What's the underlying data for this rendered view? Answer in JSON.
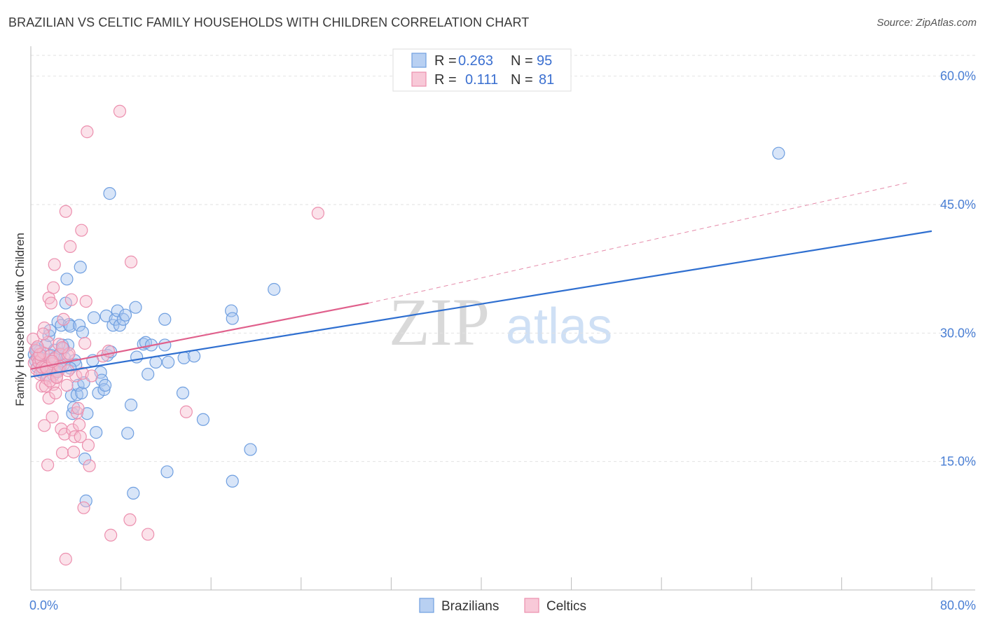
{
  "chart_data": {
    "type": "scatter",
    "title": "BRAZILIAN VS CELTIC FAMILY HOUSEHOLDS WITH CHILDREN CORRELATION CHART",
    "source": "Source: ZipAtlas.com",
    "xlabel": "",
    "ylabel": "Family Households with Children",
    "xlim": [
      0,
      80
    ],
    "ylim": [
      0,
      63
    ],
    "x_tick_labels": [
      {
        "value": 0,
        "label": "0.0%"
      },
      {
        "value": 80,
        "label": "80.0%"
      }
    ],
    "y_tick_labels": [
      {
        "value": 15,
        "label": "15.0%"
      },
      {
        "value": 30,
        "label": "30.0%"
      },
      {
        "value": 45,
        "label": "45.0%"
      },
      {
        "value": 60,
        "label": "60.0%"
      }
    ],
    "watermark": {
      "zip": "ZIP",
      "atlas": "atlas"
    },
    "legend": {
      "r_label": "R =",
      "n_label": "N =",
      "entries": [
        {
          "r": "0.263",
          "n": "95"
        },
        {
          "r": "0.111",
          "n": "81"
        }
      ]
    },
    "series": [
      {
        "name": "Brazilians",
        "color": "#6f9fe0",
        "fill": "#a9c6ef",
        "trend": {
          "x0": 0,
          "y0": 24.9,
          "x1": 80,
          "y1": 41.9,
          "style": "solid",
          "color": "#2f6fd0"
        },
        "points": [
          [
            0.3,
            27.5
          ],
          [
            0.4,
            26.8
          ],
          [
            0.5,
            28.2
          ],
          [
            0.6,
            26.0
          ],
          [
            0.7,
            27.3
          ],
          [
            0.8,
            27.9
          ],
          [
            0.9,
            26.6
          ],
          [
            1.0,
            25.4
          ],
          [
            1.1,
            27.0
          ],
          [
            1.2,
            26.3
          ],
          [
            1.3,
            28.6
          ],
          [
            1.4,
            26.9
          ],
          [
            1.5,
            25.0
          ],
          [
            1.6,
            29.7
          ],
          [
            1.7,
            30.3
          ],
          [
            1.8,
            27.4
          ],
          [
            1.9,
            26.5
          ],
          [
            2.0,
            25.1
          ],
          [
            2.1,
            28.0
          ],
          [
            2.2,
            27.2
          ],
          [
            2.3,
            26.0
          ],
          [
            2.4,
            31.3
          ],
          [
            2.5,
            25.7
          ],
          [
            2.6,
            27.6
          ],
          [
            2.7,
            30.9
          ],
          [
            2.8,
            28.6
          ],
          [
            2.9,
            26.3
          ],
          [
            3.0,
            27.1
          ],
          [
            3.1,
            33.5
          ],
          [
            3.2,
            36.3
          ],
          [
            3.3,
            28.6
          ],
          [
            3.4,
            31.0
          ],
          [
            3.5,
            30.8
          ],
          [
            3.6,
            22.7
          ],
          [
            3.7,
            20.6
          ],
          [
            3.8,
            21.3
          ],
          [
            3.9,
            26.8
          ],
          [
            4.0,
            26.3
          ],
          [
            4.1,
            22.8
          ],
          [
            4.2,
            23.9
          ],
          [
            4.3,
            30.9
          ],
          [
            4.4,
            37.7
          ],
          [
            4.5,
            23.0
          ],
          [
            4.6,
            30.1
          ],
          [
            4.7,
            24.2
          ],
          [
            4.8,
            15.3
          ],
          [
            4.9,
            10.4
          ],
          [
            5.0,
            20.6
          ],
          [
            5.5,
            26.8
          ],
          [
            5.6,
            31.8
          ],
          [
            5.8,
            18.4
          ],
          [
            6.0,
            23.0
          ],
          [
            6.2,
            25.4
          ],
          [
            6.3,
            24.5
          ],
          [
            6.5,
            23.4
          ],
          [
            6.6,
            23.9
          ],
          [
            6.7,
            32.0
          ],
          [
            6.8,
            27.4
          ],
          [
            7.0,
            46.3
          ],
          [
            7.1,
            27.8
          ],
          [
            7.3,
            30.9
          ],
          [
            7.5,
            31.6
          ],
          [
            7.7,
            32.6
          ],
          [
            7.9,
            30.9
          ],
          [
            8.2,
            31.6
          ],
          [
            8.4,
            32.1
          ],
          [
            8.6,
            18.3
          ],
          [
            8.9,
            21.6
          ],
          [
            9.1,
            11.3
          ],
          [
            9.3,
            33.0
          ],
          [
            9.4,
            27.2
          ],
          [
            10.0,
            28.7
          ],
          [
            10.2,
            28.9
          ],
          [
            10.4,
            25.2
          ],
          [
            10.7,
            28.6
          ],
          [
            11.1,
            26.6
          ],
          [
            11.9,
            31.6
          ],
          [
            11.9,
            28.6
          ],
          [
            12.1,
            13.8
          ],
          [
            12.2,
            26.6
          ],
          [
            13.5,
            23.0
          ],
          [
            13.6,
            27.1
          ],
          [
            14.5,
            27.3
          ],
          [
            15.3,
            19.9
          ],
          [
            17.8,
            32.6
          ],
          [
            17.9,
            12.7
          ],
          [
            17.9,
            31.7
          ],
          [
            19.5,
            16.4
          ],
          [
            21.6,
            35.1
          ],
          [
            66.4,
            51.0
          ],
          [
            1.2,
            26.1
          ],
          [
            0.5,
            27.9
          ],
          [
            2.2,
            25.5
          ],
          [
            3.5,
            25.9
          ],
          [
            2.9,
            28.2
          ]
        ]
      },
      {
        "name": "Celtics",
        "color": "#ec8fae",
        "fill": "#f6bfd1",
        "trend": {
          "x0": 0,
          "y0": 25.8,
          "x1": 30,
          "y1": 33.5,
          "dash_to_x": 78,
          "dash_to_y": 47.6,
          "style": "solid",
          "color": "#e0608c"
        },
        "points": [
          [
            0.2,
            29.3
          ],
          [
            0.3,
            26.5
          ],
          [
            0.4,
            28.0
          ],
          [
            0.5,
            25.8
          ],
          [
            0.6,
            27.1
          ],
          [
            0.7,
            26.6
          ],
          [
            0.8,
            25.2
          ],
          [
            0.9,
            26.9
          ],
          [
            1.0,
            23.8
          ],
          [
            1.1,
            27.7
          ],
          [
            1.2,
            30.6
          ],
          [
            1.3,
            26.1
          ],
          [
            1.4,
            24.7
          ],
          [
            1.5,
            28.9
          ],
          [
            1.6,
            22.4
          ],
          [
            1.7,
            27.3
          ],
          [
            1.8,
            25.9
          ],
          [
            1.9,
            26.4
          ],
          [
            2.0,
            24.0
          ],
          [
            2.1,
            27.0
          ],
          [
            1.1,
            29.9
          ],
          [
            1.2,
            19.2
          ],
          [
            1.3,
            23.8
          ],
          [
            1.5,
            14.6
          ],
          [
            1.6,
            34.1
          ],
          [
            1.8,
            33.5
          ],
          [
            1.9,
            20.2
          ],
          [
            2.0,
            35.3
          ],
          [
            2.1,
            38.0
          ],
          [
            2.3,
            24.9
          ],
          [
            2.5,
            28.7
          ],
          [
            2.6,
            27.5
          ],
          [
            2.7,
            18.8
          ],
          [
            2.8,
            16.0
          ],
          [
            2.9,
            31.6
          ],
          [
            3.0,
            18.2
          ],
          [
            3.1,
            44.2
          ],
          [
            3.2,
            23.9
          ],
          [
            3.3,
            27.4
          ],
          [
            3.4,
            27.6
          ],
          [
            3.5,
            40.1
          ],
          [
            3.6,
            33.9
          ],
          [
            3.7,
            18.7
          ],
          [
            3.8,
            16.1
          ],
          [
            3.9,
            17.9
          ],
          [
            4.0,
            25.0
          ],
          [
            4.1,
            20.7
          ],
          [
            4.2,
            21.2
          ],
          [
            4.3,
            19.3
          ],
          [
            4.4,
            17.9
          ],
          [
            4.5,
            42.0
          ],
          [
            4.6,
            25.3
          ],
          [
            4.7,
            9.6
          ],
          [
            4.8,
            28.8
          ],
          [
            4.9,
            33.7
          ],
          [
            5.0,
            53.5
          ],
          [
            5.1,
            16.9
          ],
          [
            5.2,
            14.5
          ],
          [
            5.4,
            25.0
          ],
          [
            6.4,
            27.3
          ],
          [
            6.9,
            27.9
          ],
          [
            7.1,
            6.4
          ],
          [
            7.9,
            55.9
          ],
          [
            8.8,
            8.2
          ],
          [
            8.9,
            38.3
          ],
          [
            10.4,
            6.5
          ],
          [
            13.8,
            20.8
          ],
          [
            25.5,
            44.0
          ],
          [
            3.1,
            3.6
          ],
          [
            2.4,
            25.5
          ],
          [
            2.2,
            23.0
          ],
          [
            1.7,
            24.4
          ],
          [
            2.6,
            26.1
          ],
          [
            0.8,
            27.5
          ],
          [
            1.0,
            26.0
          ],
          [
            3.3,
            25.6
          ],
          [
            2.8,
            28.3
          ],
          [
            1.4,
            25.9
          ],
          [
            0.6,
            28.4
          ],
          [
            1.9,
            26.7
          ],
          [
            2.3,
            24.8
          ]
        ]
      }
    ]
  }
}
